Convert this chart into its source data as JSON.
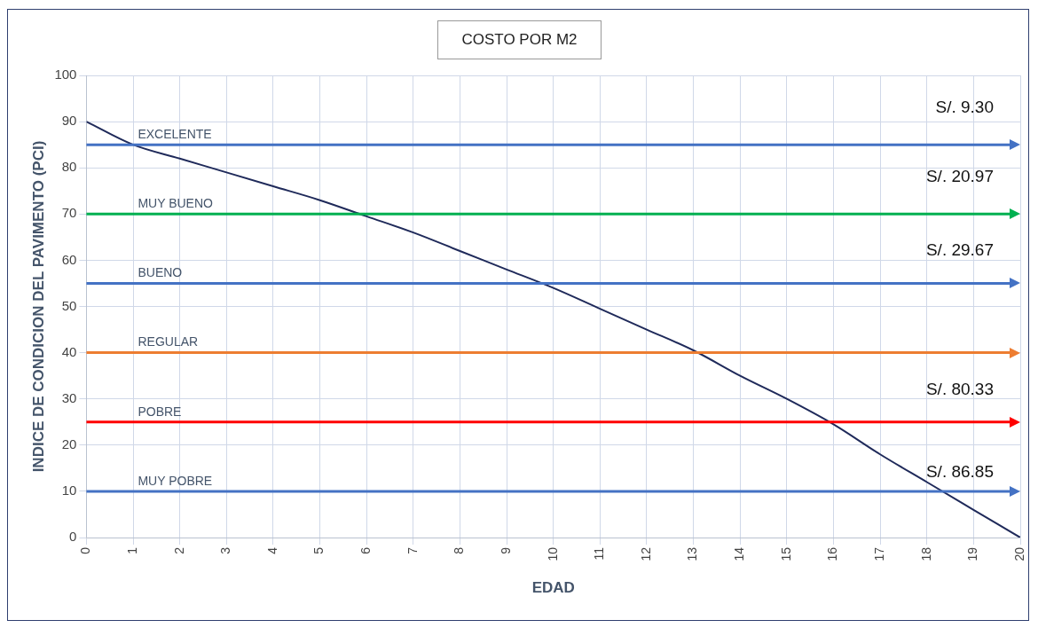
{
  "chart_data": {
    "type": "line",
    "title": "COSTO POR M2",
    "xlabel": "EDAD",
    "ylabel": "INDICE DE CONDICION DEL PAVIMENTO (PCI)",
    "x": [
      0,
      1,
      2,
      3,
      4,
      5,
      6,
      7,
      8,
      9,
      10,
      11,
      12,
      13,
      14,
      15,
      16,
      17,
      18,
      19,
      20
    ],
    "series": [
      {
        "color": "#1f2a5a",
        "values": [
          90,
          85,
          82,
          79,
          76,
          73,
          69.5,
          66,
          62,
          58,
          54,
          49.5,
          45,
          40.5,
          35,
          30,
          24.5,
          18,
          12,
          6,
          0
        ]
      }
    ],
    "xlim": [
      0,
      20
    ],
    "xticks": [
      0,
      1,
      2,
      3,
      4,
      5,
      6,
      7,
      8,
      9,
      10,
      11,
      12,
      13,
      14,
      15,
      16,
      17,
      18,
      19,
      20
    ],
    "ylim": [
      0,
      100
    ],
    "yticks": [
      0,
      10,
      20,
      30,
      40,
      50,
      60,
      70,
      80,
      90,
      100
    ],
    "grid": true,
    "legend": false,
    "marker": "none",
    "line_style": "solid",
    "ref_lines": [
      {
        "axis": "y",
        "value": 85,
        "label": "EXCELENTE",
        "color": "#4472c4"
      },
      {
        "axis": "y",
        "value": 70,
        "label": "MUY BUENO",
        "color": "#00b050"
      },
      {
        "axis": "y",
        "value": 55,
        "label": "BUENO",
        "color": "#4472c4"
      },
      {
        "axis": "y",
        "value": 40,
        "label": "REGULAR",
        "color": "#ed7d31"
      },
      {
        "axis": "y",
        "value": 25,
        "label": "POBRE",
        "color": "#ff0000"
      },
      {
        "axis": "y",
        "value": 10,
        "label": "MUY POBRE",
        "color": "#4472c4"
      }
    ],
    "annotations": [
      "S/. 9.30",
      "S/. 20.97",
      "S/. 29.67",
      "S/. 80.33",
      "S/. 86.85"
    ]
  }
}
